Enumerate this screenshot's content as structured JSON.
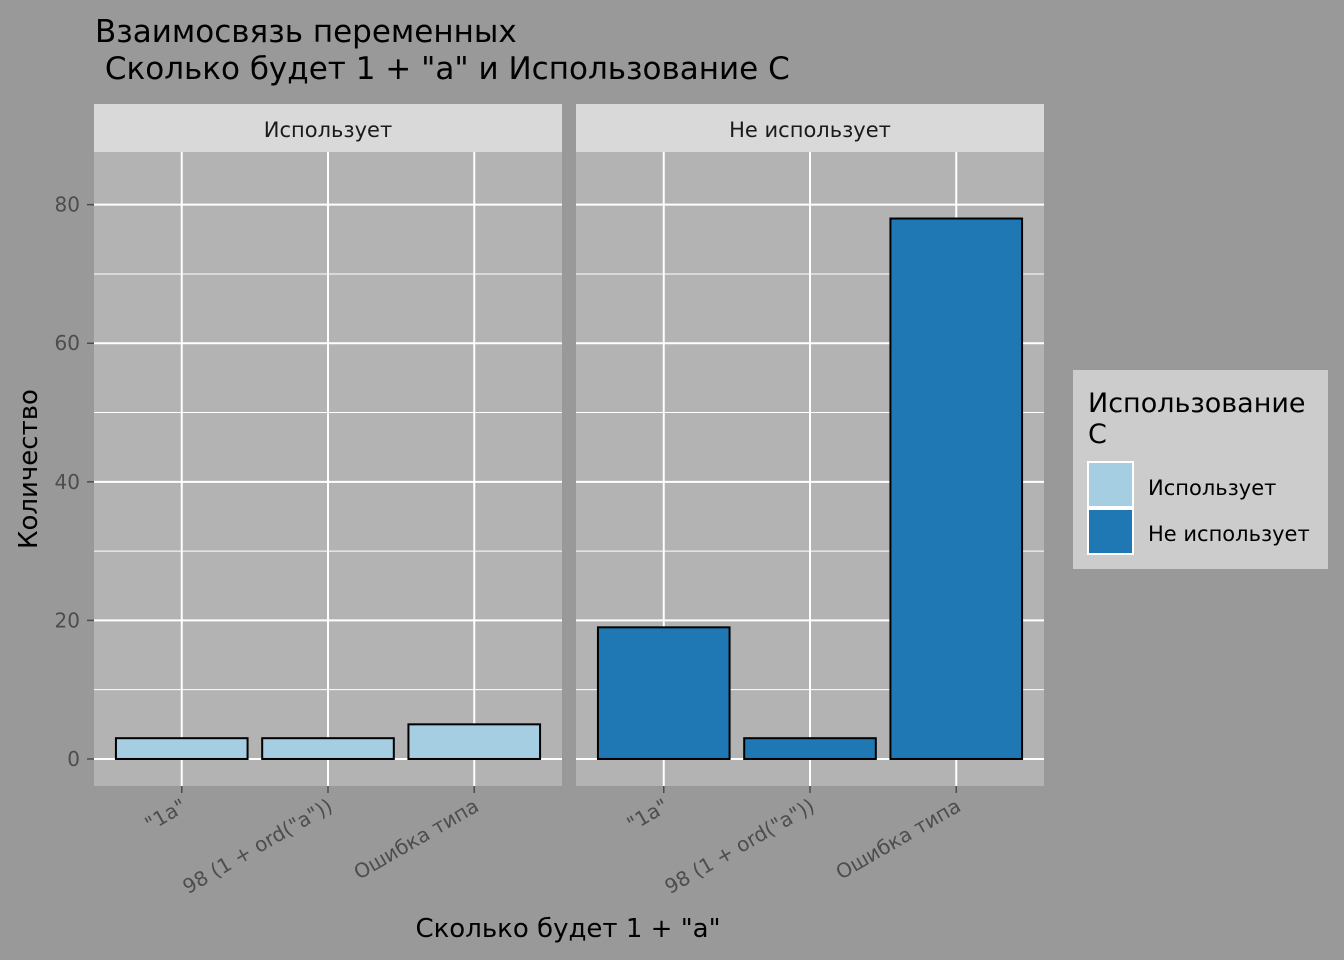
{
  "chart_data": {
    "type": "bar",
    "title": "Взаимосвязь переменных",
    "subtitle": " Сколько будет 1 + \"a\" и Использование C",
    "xlabel": "Сколько будет 1 + \"a\"",
    "ylabel": "Количество",
    "categories": [
      "\"1a\"",
      "98 (1 + ord(\"a\"))",
      "Ошибка типа"
    ],
    "ylim": [
      -3.9,
      87.6
    ],
    "yticks": [
      0,
      20,
      40,
      60,
      80
    ],
    "grid": true,
    "legend_position": "right",
    "panels": [
      {
        "name": "Использует",
        "color": "#a6cee3",
        "values": [
          3,
          3,
          5
        ]
      },
      {
        "name": "Не использует",
        "color": "#1f78b4",
        "values": [
          19,
          3,
          78
        ]
      }
    ],
    "legend": {
      "title_line1": "Использование",
      "title_line2": "C",
      "entries": [
        {
          "label": "Использует",
          "color": "#a6cee3"
        },
        {
          "label": "Не использует",
          "color": "#1f78b4"
        }
      ]
    }
  }
}
